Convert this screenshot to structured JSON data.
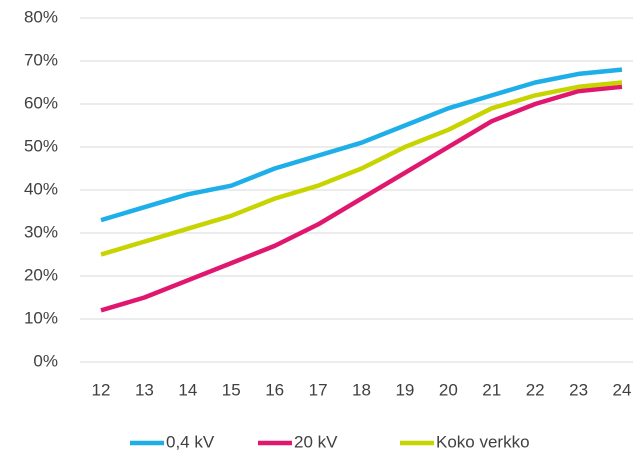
{
  "chart_data": {
    "type": "line",
    "x": [
      12,
      13,
      14,
      15,
      16,
      17,
      18,
      19,
      20,
      21,
      22,
      23,
      24
    ],
    "xlim": [
      12,
      24
    ],
    "ylim": [
      0,
      80
    ],
    "yticks": [
      {
        "value": 0,
        "label": "0%"
      },
      {
        "value": 10,
        "label": "10%"
      },
      {
        "value": 20,
        "label": "20%"
      },
      {
        "value": 30,
        "label": "30%"
      },
      {
        "value": 40,
        "label": "40%"
      },
      {
        "value": 50,
        "label": "50%"
      },
      {
        "value": 60,
        "label": "60%"
      },
      {
        "value": 70,
        "label": "70%"
      },
      {
        "value": 80,
        "label": "80%"
      }
    ],
    "grid": true,
    "legend": "bottom",
    "series": [
      {
        "name": "0,4 kV",
        "color": "#1eaee8",
        "values": [
          33,
          36,
          39,
          41,
          45,
          48,
          51,
          55,
          59,
          62,
          65,
          67,
          68
        ]
      },
      {
        "name": "20 kV",
        "color": "#e0176f",
        "values": [
          12,
          15,
          19,
          23,
          27,
          32,
          38,
          44,
          50,
          56,
          60,
          63,
          64
        ]
      },
      {
        "name": "Koko verkko",
        "color": "#c8d400",
        "values": [
          25,
          28,
          31,
          34,
          38,
          41,
          45,
          50,
          54,
          59,
          62,
          64,
          65
        ]
      }
    ]
  }
}
